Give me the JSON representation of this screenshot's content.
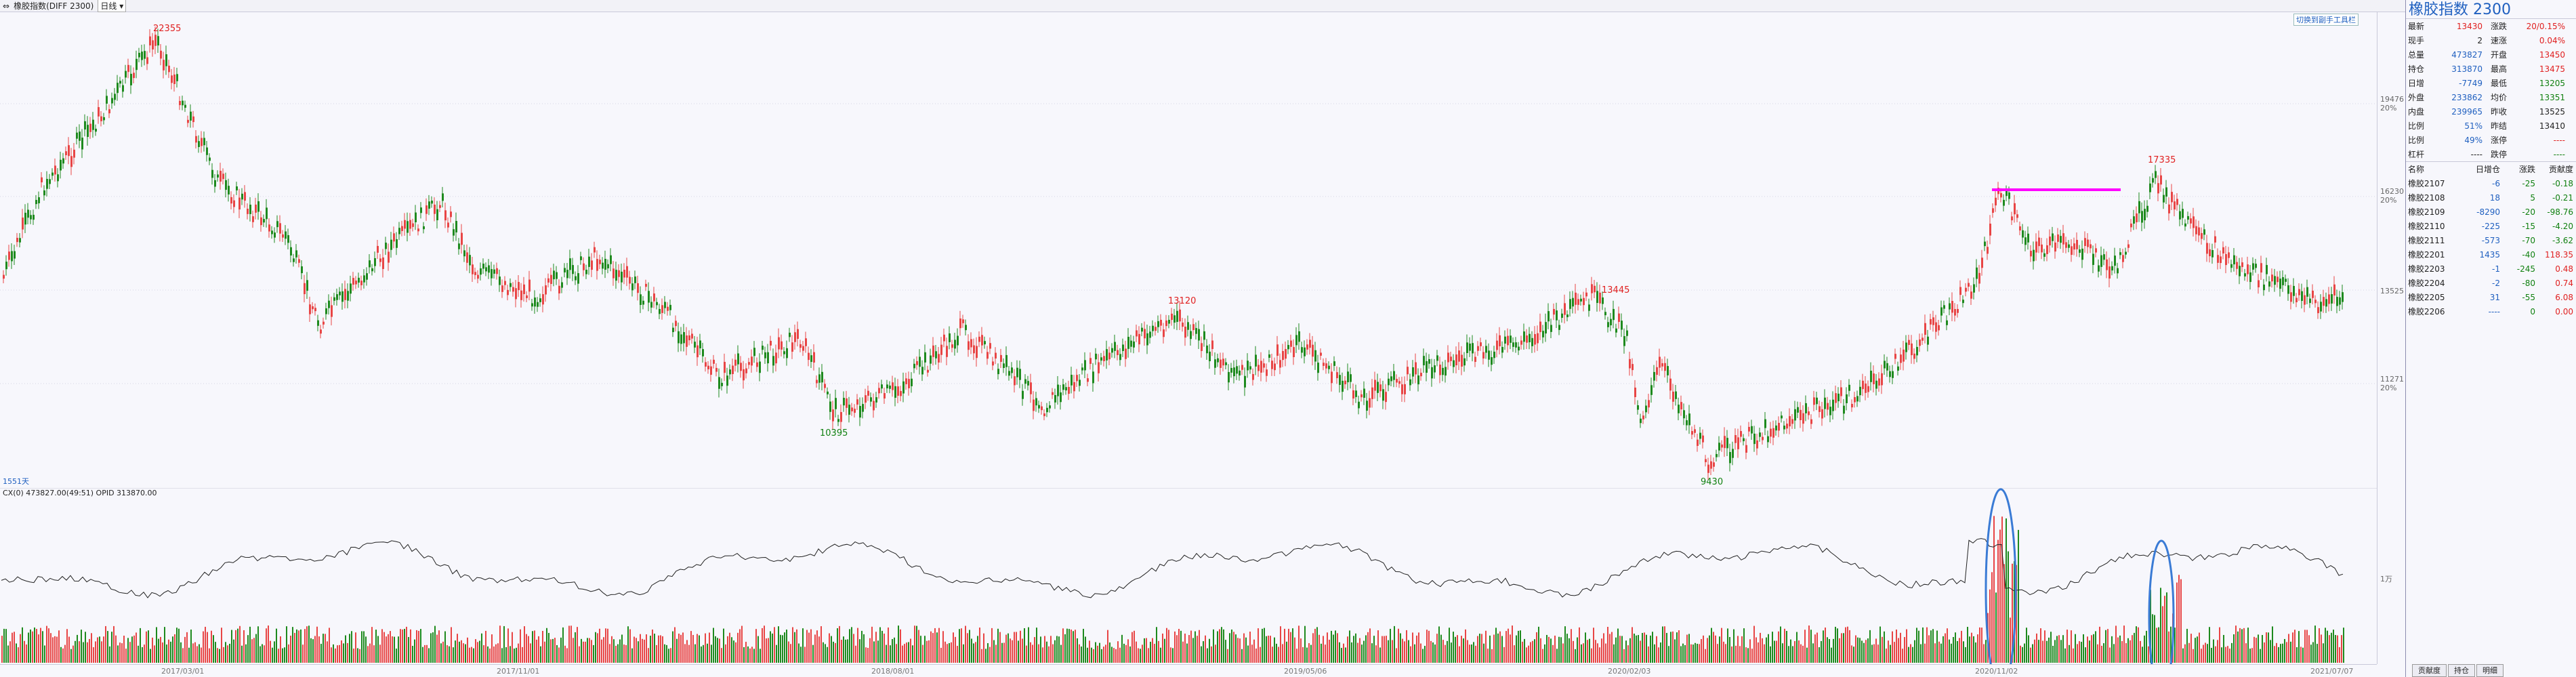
{
  "titlebar": {
    "symbol": "橡胶指数(DIFF 2300)",
    "period": "日线"
  },
  "chart": {
    "range_label": "1551天",
    "hand_label": "切换到副手工具栏"
  },
  "yaxis": {
    "labels": [
      "19476",
      "20%",
      "16230",
      "20%",
      "13525",
      "11271",
      "20%"
    ],
    "vol_label": "1万"
  },
  "annotations": {
    "high": "22355",
    "p1": "10395",
    "p2": "13120",
    "p3": "13445",
    "p4": "9430",
    "p5": "17335"
  },
  "volume": {
    "info": "CX(0) 473827.00(49:51) OPID 313870.00"
  },
  "dates": [
    "2017/03/01",
    "2017/11/01",
    "2018/08/01",
    "2019/05/06",
    "2020/02/03",
    "2020/11/02",
    "2021/07/07"
  ],
  "quote": {
    "title": "橡胶指数  2300",
    "rows": [
      [
        "最新",
        "13430",
        "涨跌",
        "20/0.15%"
      ],
      [
        "现手",
        "2",
        "速涨",
        "0.04%"
      ],
      [
        "总量",
        "473827",
        "开盘",
        "13450"
      ],
      [
        "持仓",
        "313870",
        "最高",
        "13475"
      ],
      [
        "日增",
        "-7749",
        "最低",
        "13205"
      ],
      [
        "外盘",
        "233862",
        "均价",
        "13351"
      ],
      [
        "内盘",
        "239965",
        "昨收",
        "13525"
      ],
      [
        "比例",
        "51%",
        "昨结",
        "13410"
      ],
      [
        "比例",
        "49%",
        "涨停",
        "----"
      ],
      [
        "杠杆",
        "----",
        "跌停",
        "----"
      ]
    ],
    "contracts_header": [
      "名称",
      "日增仓",
      "涨跌",
      "贡献度"
    ],
    "contracts": [
      [
        "橡胶2107",
        "-6",
        "-25",
        "-0.18"
      ],
      [
        "橡胶2108",
        "18",
        "5",
        "-0.21"
      ],
      [
        "橡胶2109",
        "-8290",
        "-20",
        "-98.76"
      ],
      [
        "橡胶2110",
        "-225",
        "-15",
        "-4.20"
      ],
      [
        "橡胶2111",
        "-573",
        "-70",
        "-3.62"
      ],
      [
        "橡胶2201",
        "1435",
        "-40",
        "118.35"
      ],
      [
        "橡胶2203",
        "-1",
        "-245",
        "0.48"
      ],
      [
        "橡胶2204",
        "-2",
        "-80",
        "0.74"
      ],
      [
        "橡胶2205",
        "31",
        "-55",
        "6.08"
      ],
      [
        "橡胶2206",
        "----",
        "0",
        "0.00"
      ]
    ]
  },
  "tabs": [
    "贡献度",
    "持仓",
    "明细"
  ],
  "colors": {
    "up": "#e84545",
    "down": "#1e8a1e",
    "line": "#ff00ff",
    "circle": "#3a7bd5"
  }
}
